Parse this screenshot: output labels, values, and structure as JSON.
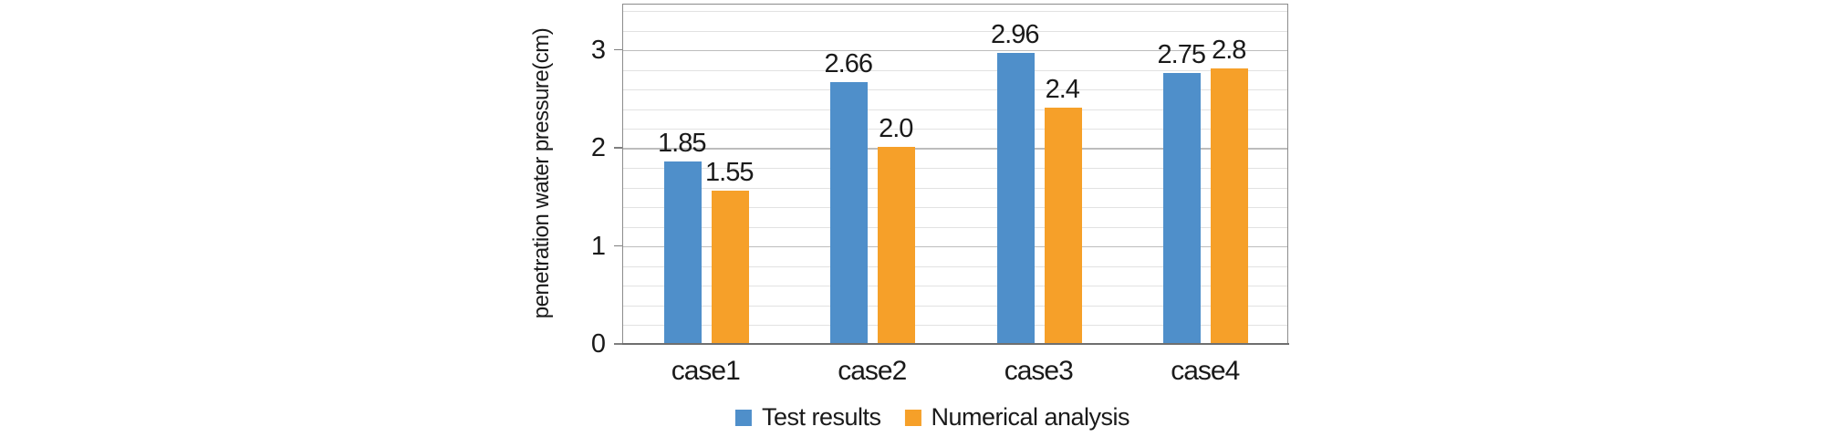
{
  "chart_data": {
    "type": "bar",
    "title": "",
    "xlabel": "",
    "ylabel": "penetration water pressure(cm)",
    "categories": [
      "case1",
      "case2",
      "case3",
      "case4"
    ],
    "series": [
      {
        "name": "Test results",
        "color": "#4F8FCA",
        "values": [
          1.85,
          2.66,
          2.96,
          2.75
        ],
        "labels": [
          "1.85",
          "2.66",
          "2.96",
          "2.75"
        ]
      },
      {
        "name": "Numerical analysis",
        "color": "#F6A029",
        "values": [
          1.55,
          2.0,
          2.4,
          2.8
        ],
        "labels": [
          "1.55",
          "2.0",
          "2.4",
          "2.8"
        ]
      }
    ],
    "y_axis": {
      "tick_labels": [
        "0",
        "1",
        "2",
        "3"
      ],
      "tick_values": [
        0,
        1,
        2,
        3
      ],
      "max": 3.47,
      "minor_step": 0.2
    },
    "grid": true,
    "legend_position": "bottom"
  }
}
